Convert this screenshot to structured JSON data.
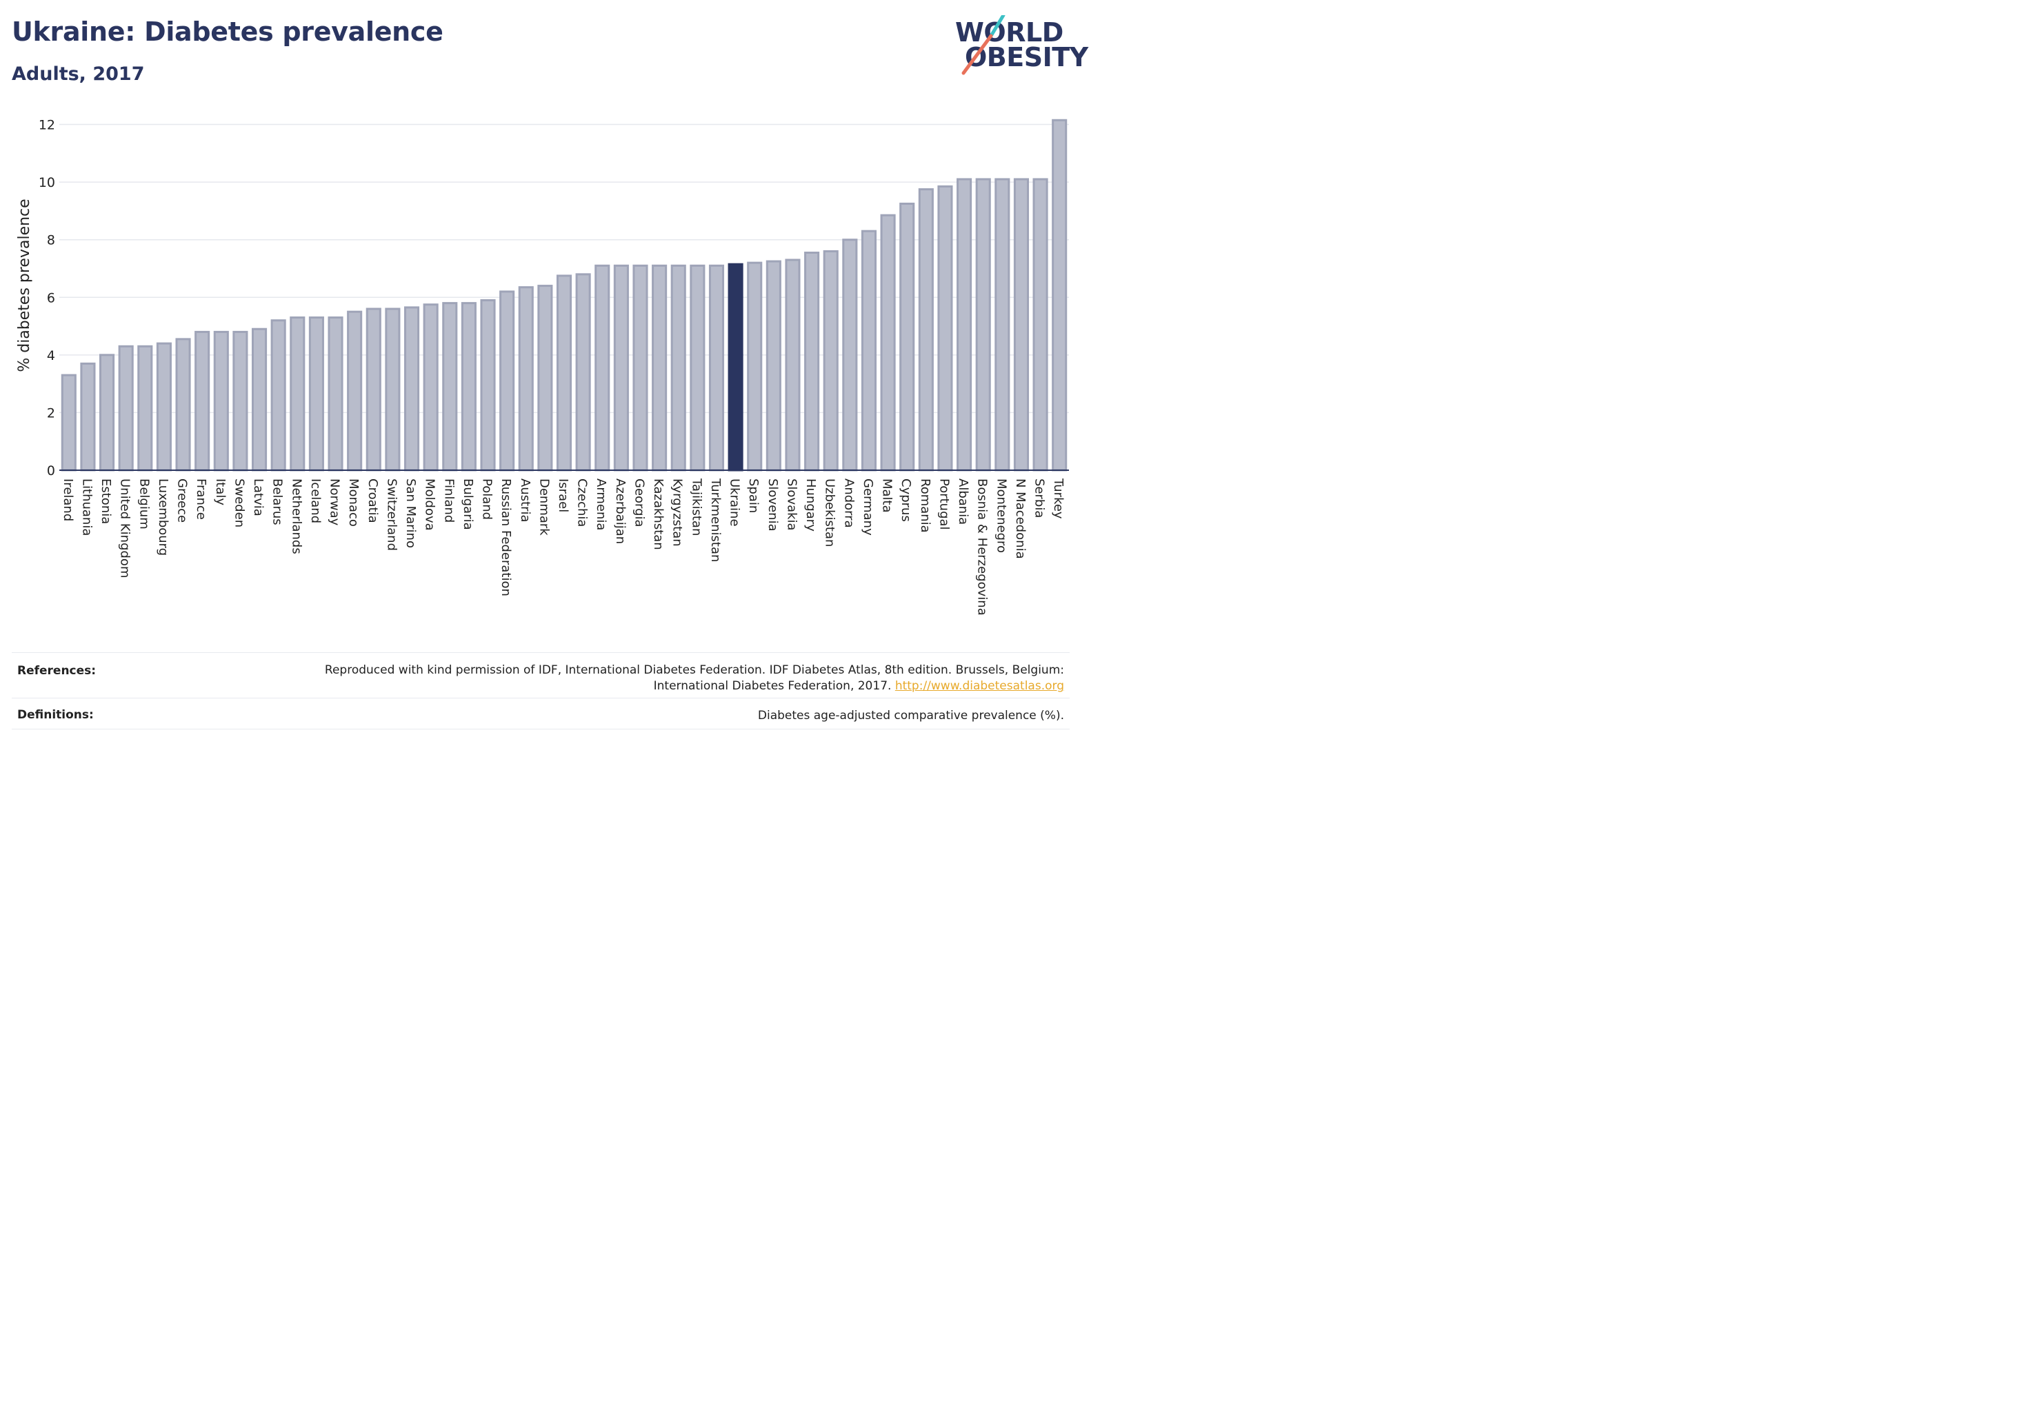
{
  "header": {
    "title": "Ukraine: Diabetes prevalence",
    "subtitle": "Adults, 2017"
  },
  "logo": {
    "text_line1": "WORLD",
    "text_line2": "OBESITY",
    "slash_colors": [
      "#3cc0c5",
      "#e8715a"
    ]
  },
  "colors": {
    "bar": "#b8bccb",
    "bar_stroke": "#9fa4b8",
    "highlight": "#2a3560",
    "grid": "#e6e8ee",
    "text": "#2a3560"
  },
  "chart_data": {
    "type": "bar",
    "ylabel": "% diabetes prevalence",
    "xlabel": "",
    "ylim": [
      0,
      12.3
    ],
    "yticks": [
      0,
      2,
      4,
      6,
      8,
      10,
      12
    ],
    "grid": true,
    "highlight": "Ukraine",
    "categories": [
      "Ireland",
      "Lithuania",
      "Estonia",
      "United Kingdom",
      "Belgium",
      "Luxembourg",
      "Greece",
      "France",
      "Italy",
      "Sweden",
      "Latvia",
      "Belarus",
      "Netherlands",
      "Iceland",
      "Norway",
      "Monaco",
      "Croatia",
      "Switzerland",
      "San Marino",
      "Moldova",
      "Finland",
      "Bulgaria",
      "Poland",
      "Russian Federation",
      "Austria",
      "Denmark",
      "Israel",
      "Czechia",
      "Armenia",
      "Azerbaijan",
      "Georgia",
      "Kazakhstan",
      "Kyrgyzstan",
      "Tajikistan",
      "Turkmenistan",
      "Ukraine",
      "Spain",
      "Slovenia",
      "Slovakia",
      "Hungary",
      "Uzbekistan",
      "Andorra",
      "Germany",
      "Malta",
      "Cyprus",
      "Romania",
      "Portugal",
      "Albania",
      "Bosnia & Herzegovina",
      "Montenegro",
      "N Macedonia",
      "Serbia",
      "Turkey"
    ],
    "values": [
      3.3,
      3.7,
      4.0,
      4.3,
      4.3,
      4.4,
      4.55,
      4.8,
      4.8,
      4.8,
      4.9,
      5.2,
      5.3,
      5.3,
      5.3,
      5.5,
      5.6,
      5.6,
      5.65,
      5.75,
      5.8,
      5.8,
      5.9,
      6.2,
      6.35,
      6.4,
      6.75,
      6.8,
      7.1,
      7.1,
      7.1,
      7.1,
      7.1,
      7.1,
      7.1,
      7.15,
      7.2,
      7.25,
      7.3,
      7.55,
      7.6,
      8.0,
      8.3,
      8.85,
      9.25,
      9.75,
      9.85,
      10.1,
      10.1,
      10.1,
      10.1,
      10.1,
      12.15
    ]
  },
  "footer": {
    "references_label": "References:",
    "references_text_line1": "Reproduced with kind permission of IDF, International Diabetes Federation. IDF Diabetes Atlas, 8th edition. Brussels, Belgium:",
    "references_text_line2": "International Diabetes Federation, 2017.",
    "references_link": "http://www.diabetesatlas.org",
    "definitions_label": "Definitions:",
    "definitions_text": "Diabetes age-adjusted comparative prevalence (%)."
  }
}
